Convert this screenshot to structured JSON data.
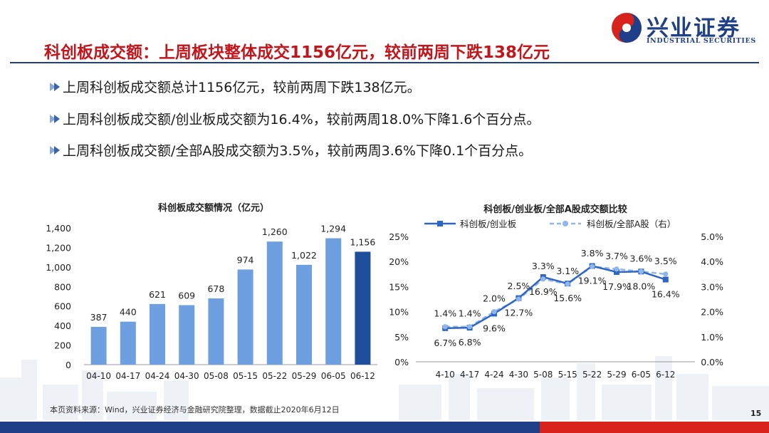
{
  "header": {
    "logo_text": "兴业证券",
    "logo_sub": "INDUSTRIAL SECURITIES",
    "title": "科创板成交额：上周板块整体成交1156亿元，较前两周下跌138亿元"
  },
  "bullets": [
    "上周科创板成交额总计1156亿元，较前两周下跌138亿元。",
    "上周科创板成交额/创业板成交额为16.4%，较前两周18.0%下降1.6个百分点。",
    "上周科创板成交额/全部A股成交额为3.5%，较前两周3.6%下降0.1个百分点。"
  ],
  "footnote": "本页资料来源：Wind，兴业证券经济与金融研究院整理，数据截止2020年6月12日",
  "page_number": "15",
  "colors": {
    "brand_blue": "#1f3f88",
    "brand_red": "#c3161c",
    "bar": "#6e9fe0",
    "bar_highlight": "#1f4e9b",
    "line_solid": "#2f66c4",
    "line_dash": "#8fb7ee"
  },
  "chart_data": [
    {
      "type": "bar",
      "title": "科创板成交额情况（亿元）",
      "categories": [
        "04-10",
        "04-17",
        "04-24",
        "04-30",
        "05-08",
        "05-15",
        "05-22",
        "05-29",
        "06-05",
        "06-12"
      ],
      "values": [
        387,
        440,
        621,
        609,
        678,
        974,
        1260,
        1022,
        1294,
        1156
      ],
      "value_labels": [
        "387",
        "440",
        "621",
        "609",
        "678",
        "974",
        "1,260",
        "1,022",
        "1,294",
        "1,156"
      ],
      "ylim": [
        0,
        1400
      ],
      "yticks": [
        "0",
        "200",
        "400",
        "600",
        "800",
        "1,000",
        "1,200",
        "1,400"
      ],
      "highlight_last": true
    },
    {
      "type": "line",
      "title": "科创板/创业板/全部A股成交额比较",
      "categories": [
        "4-10",
        "4-17",
        "4-24",
        "4-30",
        "5-08",
        "5-15",
        "5-22",
        "5-29",
        "6-05",
        "6-12"
      ],
      "series": [
        {
          "name": "科创板/创业板",
          "axis": "left",
          "style": "solid",
          "values": [
            6.7,
            6.8,
            9.6,
            12.7,
            16.9,
            15.6,
            19.1,
            17.9,
            18.0,
            16.4
          ],
          "labels": [
            "6.7%",
            "6.8%",
            "9.6%",
            "12.7%",
            "16.9%",
            "15.6%",
            "19.1%",
            "17.9%",
            "18.0%",
            "16.4%"
          ]
        },
        {
          "name": "科创板/全部A股（右）",
          "axis": "right",
          "style": "dashed",
          "values": [
            1.4,
            1.4,
            2.0,
            2.5,
            3.3,
            3.1,
            3.8,
            3.7,
            3.6,
            3.5
          ],
          "labels": [
            "1.4%",
            "1.4%",
            "2.0%",
            "2.5%",
            "3.3%",
            "3.1%",
            "3.8%",
            "3.7%",
            "3.6%",
            "3.5%"
          ]
        }
      ],
      "ylim_left": [
        0,
        25
      ],
      "yticks_left": [
        "0%",
        "5%",
        "10%",
        "15%",
        "20%",
        "25%"
      ],
      "ylim_right": [
        0,
        5
      ],
      "yticks_right": [
        "0.0%",
        "1.0%",
        "2.0%",
        "3.0%",
        "4.0%",
        "5.0%"
      ],
      "legend": "top"
    }
  ]
}
